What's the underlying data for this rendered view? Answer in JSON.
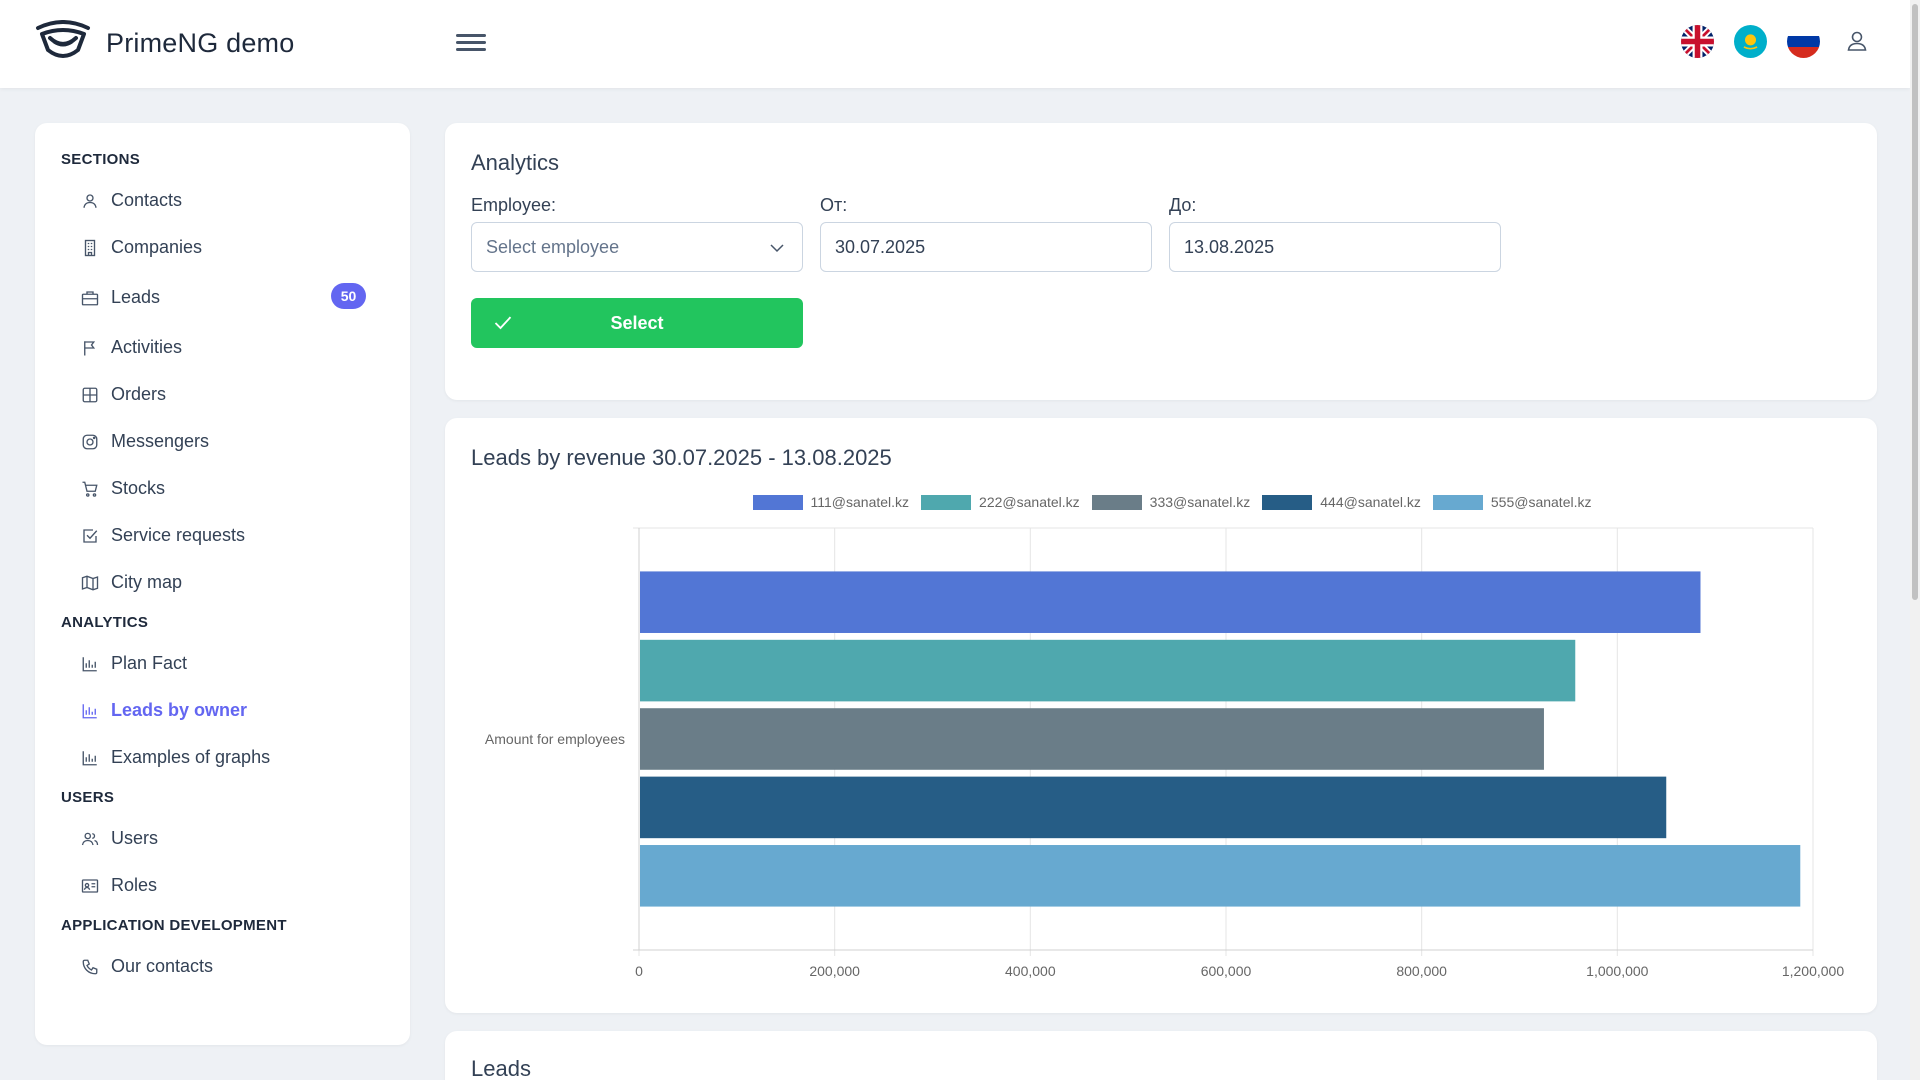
{
  "app": {
    "title": "PrimeNG demo"
  },
  "header": {
    "flags": [
      {
        "name": "English",
        "icon": "uk-flag"
      },
      {
        "name": "Kazakh",
        "icon": "kz-flag"
      },
      {
        "name": "Russian",
        "icon": "ru-flag"
      }
    ]
  },
  "sidebar": {
    "sections": [
      {
        "title": "SECTIONS",
        "items": [
          {
            "label": "Contacts",
            "icon": "user-icon"
          },
          {
            "label": "Companies",
            "icon": "building-icon"
          },
          {
            "label": "Leads",
            "icon": "briefcase-icon",
            "badge": "50"
          },
          {
            "label": "Activities",
            "icon": "flag-icon"
          },
          {
            "label": "Orders",
            "icon": "table-icon"
          },
          {
            "label": "Messengers",
            "icon": "instagram-icon"
          },
          {
            "label": "Stocks",
            "icon": "cart-icon"
          },
          {
            "label": "Service requests",
            "icon": "check-square-icon"
          },
          {
            "label": "City map",
            "icon": "map-icon"
          }
        ]
      },
      {
        "title": "ANALYTICS",
        "items": [
          {
            "label": "Plan Fact",
            "icon": "chart-bar-icon"
          },
          {
            "label": "Leads by owner",
            "icon": "chart-bar-icon",
            "active": true
          },
          {
            "label": "Examples of graphs",
            "icon": "chart-bar-icon"
          }
        ]
      },
      {
        "title": "USERS",
        "items": [
          {
            "label": "Users",
            "icon": "users-icon"
          },
          {
            "label": "Roles",
            "icon": "id-card-icon"
          }
        ]
      },
      {
        "title": "APPLICATION DEVELOPMENT",
        "items": [
          {
            "label": "Our contacts",
            "icon": "phone-icon"
          }
        ]
      }
    ]
  },
  "filters": {
    "title": "Analytics",
    "employee_label": "Employee:",
    "employee_placeholder": "Select employee",
    "from_label": "От:",
    "from_value": "30.07.2025",
    "to_label": "До:",
    "to_value": "13.08.2025",
    "select_button": "Select"
  },
  "chart_card": {
    "title": "Leads by revenue 30.07.2025 - 13.08.2025"
  },
  "leads_card": {
    "title": "Leads"
  },
  "colors": {
    "accent": "#6366f1",
    "success": "#22c55e"
  },
  "chart_data": {
    "type": "bar",
    "orientation": "horizontal",
    "categories": [
      "Amount for employees"
    ],
    "series": [
      {
        "name": "111@sanatel.kz",
        "values": [
          1085000
        ],
        "color": "#5276d5"
      },
      {
        "name": "222@sanatel.kz",
        "values": [
          957000
        ],
        "color": "#4fa8ae"
      },
      {
        "name": "333@sanatel.kz",
        "values": [
          925000
        ],
        "color": "#6a7d88"
      },
      {
        "name": "444@sanatel.kz",
        "values": [
          1050000
        ],
        "color": "#265d86"
      },
      {
        "name": "555@sanatel.kz",
        "values": [
          1187000
        ],
        "color": "#67a9d0"
      }
    ],
    "xticks": [
      "0",
      "200,000",
      "400,000",
      "600,000",
      "800,000",
      "1,000,000",
      "1,200,000"
    ],
    "xlim": [
      0,
      1200000
    ],
    "grid": true,
    "legend": "top-center",
    "xlabel": "",
    "ylabel": ""
  }
}
